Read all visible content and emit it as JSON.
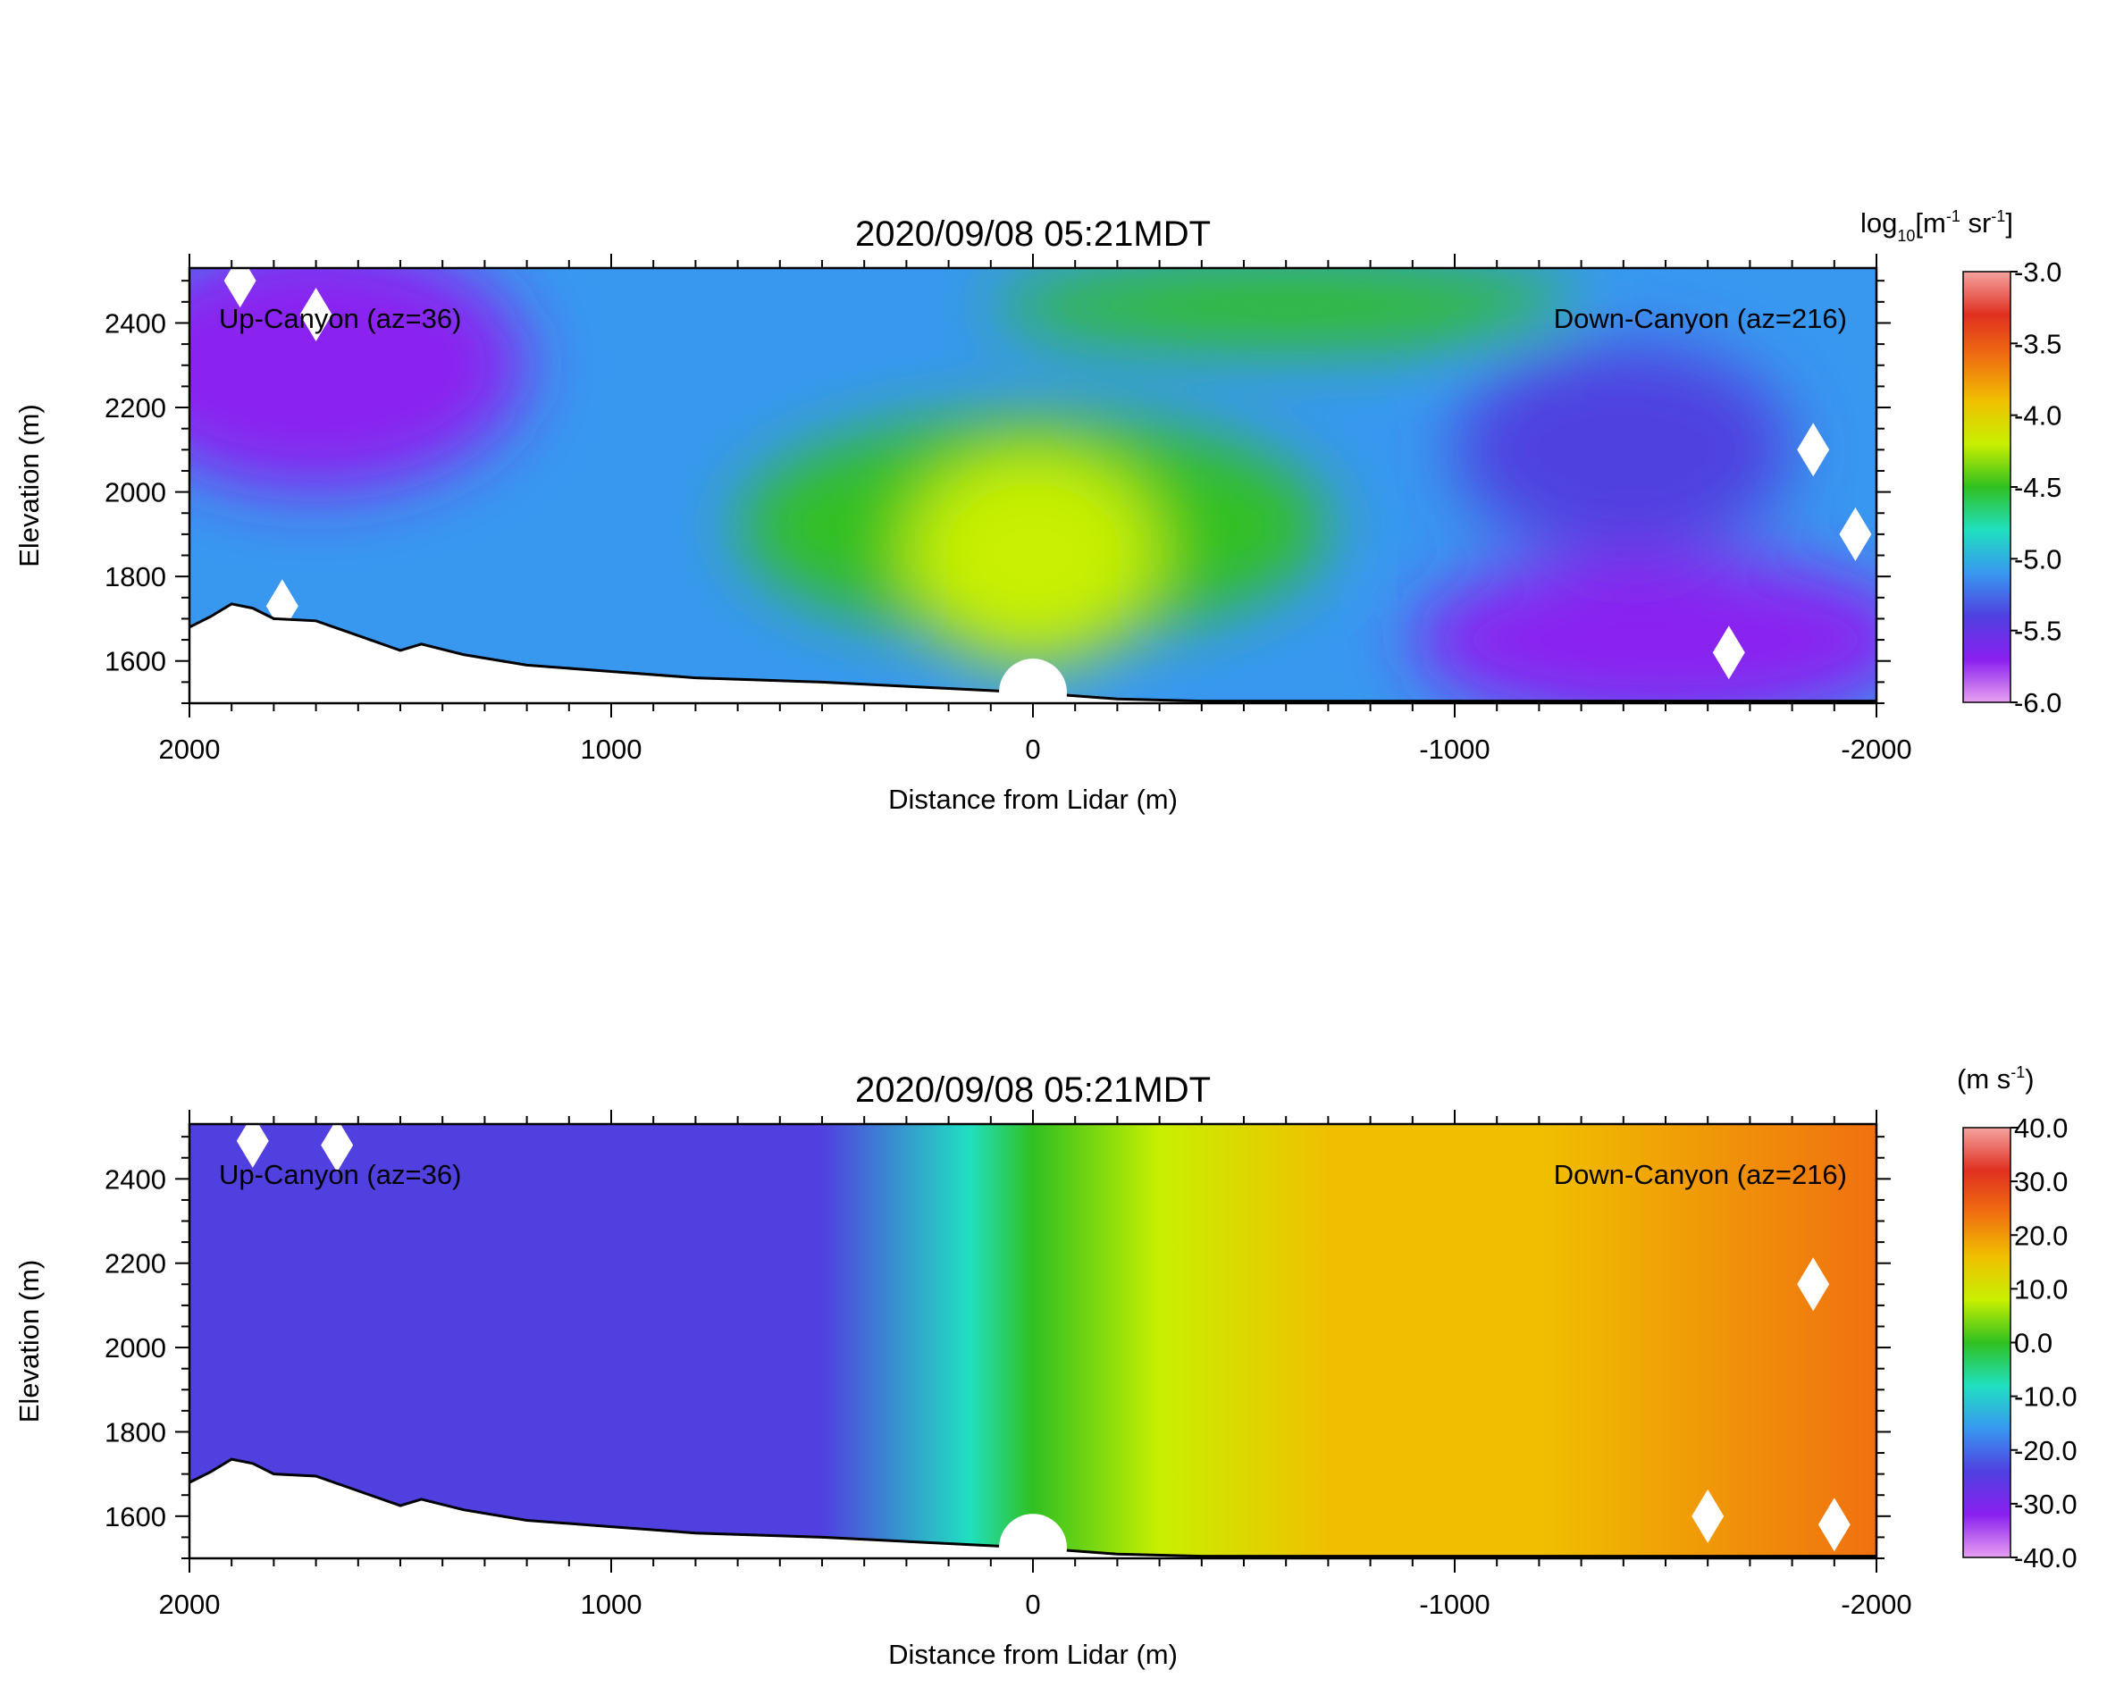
{
  "chart_data": [
    {
      "type": "heatmap",
      "title": "2020/09/08 05:21MDT",
      "xlabel": "Distance from Lidar (m)",
      "ylabel": "Elevation (m)",
      "xlim": [
        2000,
        -2000
      ],
      "ylim": [
        1500,
        2530
      ],
      "x_ticks": [
        2000,
        1000,
        0,
        -1000,
        -2000
      ],
      "x_tick_labels": [
        "2000",
        "1000",
        "0",
        "-1000",
        "-2000"
      ],
      "y_ticks": [
        1600,
        1800,
        2000,
        2200,
        2400
      ],
      "y_tick_labels": [
        "1600",
        "1800",
        "2000",
        "2200",
        "2400"
      ],
      "annotations": [
        "Up-Canyon (az=36)",
        "Down-Canyon (az=216)"
      ],
      "colorbar": {
        "label_main": "log",
        "label_sub": "10",
        "label_rest": "[m",
        "label_exp1": "-1",
        "label_mid": " sr",
        "label_exp2": "-1",
        "label_end": "]",
        "min": -6.0,
        "max": -3.0,
        "ticks": [
          -3.0,
          -3.5,
          -4.0,
          -4.5,
          -5.0,
          -5.5,
          -6.0
        ],
        "tick_labels": [
          "-3.0",
          "-3.5",
          "-4.0",
          "-4.5",
          "-5.0",
          "-5.5",
          "-6.0"
        ],
        "colors": [
          "#f4a3a0",
          "#e03020",
          "#f07010",
          "#f0c000",
          "#c8f000",
          "#30c020",
          "#20e0c0",
          "#3898f0",
          "#5040e0",
          "#8a20f0",
          "#e8a0f0"
        ]
      },
      "terrain": [
        [
          2000,
          1680
        ],
        [
          1950,
          1705
        ],
        [
          1900,
          1735
        ],
        [
          1850,
          1725
        ],
        [
          1800,
          1700
        ],
        [
          1700,
          1695
        ],
        [
          1600,
          1660
        ],
        [
          1500,
          1625
        ],
        [
          1450,
          1640
        ],
        [
          1350,
          1615
        ],
        [
          1200,
          1590
        ],
        [
          1000,
          1575
        ],
        [
          800,
          1560
        ],
        [
          500,
          1550
        ],
        [
          200,
          1535
        ],
        [
          0,
          1525
        ],
        [
          -200,
          1510
        ],
        [
          -400,
          1505
        ],
        [
          -2000,
          1505
        ]
      ],
      "field": {
        "description_free": true,
        "blobs": [
          {
            "x": 0,
            "y": 1920,
            "rx": 700,
            "ry": 260,
            "value": -4.6
          },
          {
            "x": 0,
            "y": 1850,
            "rx": 300,
            "ry": 260,
            "value": -4.3
          },
          {
            "x": -600,
            "y": 2440,
            "rx": 700,
            "ry": 100,
            "value": -4.6
          },
          {
            "x": 1700,
            "y": 2300,
            "rx": 500,
            "ry": 300,
            "value": -5.6
          },
          {
            "x": -1500,
            "y": 1650,
            "rx": 600,
            "ry": 200,
            "value": -5.8
          },
          {
            "x": -1400,
            "y": 2100,
            "rx": 400,
            "ry": 250,
            "value": -5.5
          }
        ],
        "background_value": -5.2
      },
      "gaps": [
        [
          1880,
          2500
        ],
        [
          1700,
          2420
        ],
        [
          1780,
          1730
        ],
        [
          -1650,
          1620
        ],
        [
          -1850,
          2100
        ],
        [
          -1950,
          1900
        ]
      ]
    },
    {
      "type": "heatmap",
      "title": "2020/09/08 05:21MDT",
      "xlabel": "Distance from Lidar (m)",
      "ylabel": "Elevation (m)",
      "xlim": [
        2000,
        -2000
      ],
      "ylim": [
        1500,
        2530
      ],
      "x_ticks": [
        2000,
        1000,
        0,
        -1000,
        -2000
      ],
      "x_tick_labels": [
        "2000",
        "1000",
        "0",
        "-1000",
        "-2000"
      ],
      "y_ticks": [
        1600,
        1800,
        2000,
        2200,
        2400
      ],
      "y_tick_labels": [
        "1600",
        "1800",
        "2000",
        "2200",
        "2400"
      ],
      "annotations": [
        "Up-Canyon (az=36)",
        "Down-Canyon (az=216)"
      ],
      "colorbar": {
        "label_main": "(m s",
        "label_exp1": "-1",
        "label_end": ")",
        "min": -40.0,
        "max": 40.0,
        "ticks": [
          40.0,
          30.0,
          20.0,
          10.0,
          0.0,
          -10.0,
          -20.0,
          -30.0,
          -40.0
        ],
        "tick_labels": [
          "40.0",
          "30.0",
          "20.0",
          "10.0",
          "0.0",
          "-10.0",
          "-20.0",
          "-30.0",
          "-40.0"
        ],
        "colors": [
          "#f4a3a0",
          "#e03020",
          "#f07010",
          "#f0c000",
          "#c8f000",
          "#30c020",
          "#20e0c0",
          "#3898f0",
          "#5040e0",
          "#8a20f0",
          "#e8a0f0"
        ]
      },
      "terrain": [
        [
          2000,
          1680
        ],
        [
          1950,
          1705
        ],
        [
          1900,
          1735
        ],
        [
          1850,
          1725
        ],
        [
          1800,
          1700
        ],
        [
          1700,
          1695
        ],
        [
          1600,
          1660
        ],
        [
          1500,
          1625
        ],
        [
          1450,
          1640
        ],
        [
          1350,
          1615
        ],
        [
          1200,
          1590
        ],
        [
          1000,
          1575
        ],
        [
          800,
          1560
        ],
        [
          500,
          1550
        ],
        [
          200,
          1535
        ],
        [
          0,
          1525
        ],
        [
          -200,
          1510
        ],
        [
          -400,
          1505
        ],
        [
          -2000,
          1505
        ]
      ],
      "field": {
        "gradient_stops": [
          [
            2000,
            -24
          ],
          [
            1200,
            -24
          ],
          [
            500,
            -20
          ],
          [
            150,
            -8
          ],
          [
            0,
            0
          ],
          [
            -300,
            8
          ],
          [
            -700,
            15
          ],
          [
            -1200,
            20
          ],
          [
            -2000,
            22
          ]
        ]
      },
      "gaps": [
        [
          1850,
          2490
        ],
        [
          1650,
          2480
        ],
        [
          -1850,
          2150
        ],
        [
          -1600,
          1600
        ],
        [
          -1900,
          1580
        ]
      ]
    }
  ]
}
